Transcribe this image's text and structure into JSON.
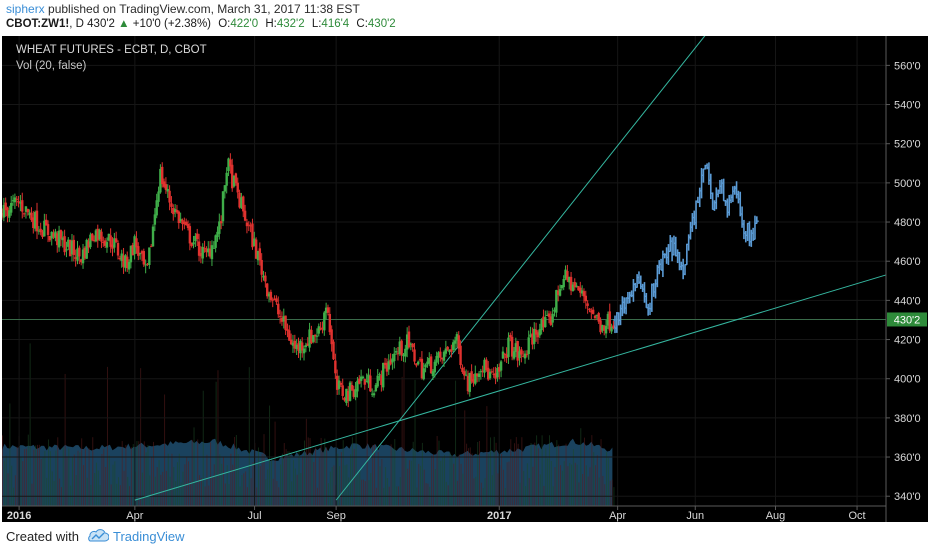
{
  "header": {
    "user": "sipherx",
    "published_text": " published on TradingView.com, March 31, 2017 11:38 EST",
    "symbol": "CBOT:ZW1!",
    "interval": ", D",
    "last": "430'2",
    "change_arrow": "▲",
    "change": "+10'0 (+2.38%)",
    "open_label": "O:",
    "open": "422'0",
    "high_label": "H:",
    "high": "432'2",
    "low_label": "L:",
    "low": "416'4",
    "close_label": "C:",
    "close": "430'2"
  },
  "footer": {
    "created_with": "Created with",
    "brand": "TradingView"
  },
  "colors": {
    "background": "#000000",
    "up": "#3fae49",
    "down": "#e0322f",
    "projection": "#5b9bd5",
    "trendline": "#35b7a0",
    "volume": "#1f4e6e",
    "last_tag": "#2e8b3a",
    "axis_text": "#d9d9d9"
  },
  "chart_data": {
    "type": "candlestick",
    "title": "WHEAT FUTURES - ECBT, D, CBOT",
    "indicator": "Vol (20, false)",
    "x_tick_labels": [
      "2016",
      "Apr",
      "Jul",
      "Sep",
      "2017",
      "Apr",
      "Jun",
      "Aug",
      "Oct"
    ],
    "x_tick_dates": [
      "2016-01-04",
      "2016-04-01",
      "2016-07-01",
      "2016-09-01",
      "2017-01-03",
      "2017-04-03",
      "2017-06-01",
      "2017-08-01",
      "2017-10-02"
    ],
    "x_range": [
      "2015-12-22",
      "2017-10-24"
    ],
    "y_ticks": [
      340,
      360,
      380,
      400,
      420,
      440,
      460,
      480,
      500,
      520,
      540,
      560
    ],
    "y_tick_labels": [
      "340'0",
      "360'0",
      "380'0",
      "400'0",
      "420'0",
      "440'0",
      "460'0",
      "480'0",
      "500'0",
      "520'0",
      "540'0",
      "560'0"
    ],
    "y_range": [
      335,
      575
    ],
    "last_price": 430.25,
    "last_price_label": "430'2",
    "price_path": [
      [
        "2015-12-22",
        485
      ],
      [
        "2016-01-04",
        490
      ],
      [
        "2016-01-20",
        478
      ],
      [
        "2016-02-05",
        470
      ],
      [
        "2016-02-20",
        462
      ],
      [
        "2016-03-01",
        475
      ],
      [
        "2016-03-15",
        470
      ],
      [
        "2016-03-25",
        458
      ],
      [
        "2016-04-01",
        470
      ],
      [
        "2016-04-10",
        452
      ],
      [
        "2016-04-20",
        505
      ],
      [
        "2016-04-28",
        490
      ],
      [
        "2016-05-10",
        475
      ],
      [
        "2016-05-25",
        462
      ],
      [
        "2016-06-05",
        478
      ],
      [
        "2016-06-10",
        510
      ],
      [
        "2016-06-20",
        490
      ],
      [
        "2016-06-30",
        470
      ],
      [
        "2016-07-10",
        448
      ],
      [
        "2016-07-20",
        432
      ],
      [
        "2016-08-01",
        415
      ],
      [
        "2016-08-10",
        420
      ],
      [
        "2016-08-20",
        425
      ],
      [
        "2016-08-25",
        440
      ],
      [
        "2016-09-01",
        395
      ],
      [
        "2016-09-10",
        392
      ],
      [
        "2016-09-20",
        400
      ],
      [
        "2016-10-01",
        396
      ],
      [
        "2016-10-12",
        410
      ],
      [
        "2016-10-25",
        418
      ],
      [
        "2016-11-05",
        405
      ],
      [
        "2016-11-20",
        410
      ],
      [
        "2016-12-01",
        420
      ],
      [
        "2016-12-10",
        398
      ],
      [
        "2016-12-20",
        408
      ],
      [
        "2016-12-31",
        398
      ],
      [
        "2017-01-10",
        418
      ],
      [
        "2017-01-20",
        410
      ],
      [
        "2017-02-01",
        426
      ],
      [
        "2017-02-10",
        428
      ],
      [
        "2017-02-20",
        452
      ],
      [
        "2017-02-28",
        448
      ],
      [
        "2017-03-10",
        440
      ],
      [
        "2017-03-20",
        428
      ],
      [
        "2017-03-31",
        430
      ]
    ],
    "volume_profile": [
      [
        "2015-12-22",
        0.35
      ],
      [
        "2016-03-01",
        0.34
      ],
      [
        "2016-06-01",
        0.38
      ],
      [
        "2016-07-15",
        0.28
      ],
      [
        "2016-09-15",
        0.36
      ],
      [
        "2016-12-01",
        0.3
      ],
      [
        "2017-01-15",
        0.33
      ],
      [
        "2017-03-01",
        0.38
      ],
      [
        "2017-03-31",
        0.33
      ]
    ],
    "projection_path": [
      [
        "2017-04-01",
        430
      ],
      [
        "2017-04-10",
        440
      ],
      [
        "2017-04-18",
        452
      ],
      [
        "2017-04-25",
        434
      ],
      [
        "2017-05-05",
        458
      ],
      [
        "2017-05-15",
        468
      ],
      [
        "2017-05-22",
        455
      ],
      [
        "2017-05-28",
        475
      ],
      [
        "2017-06-05",
        495
      ],
      [
        "2017-06-08",
        512
      ],
      [
        "2017-06-14",
        490
      ],
      [
        "2017-06-20",
        500
      ],
      [
        "2017-06-26",
        485
      ],
      [
        "2017-07-01",
        498
      ],
      [
        "2017-07-08",
        478
      ],
      [
        "2017-07-14",
        472
      ],
      [
        "2017-07-18",
        478
      ]
    ],
    "trendlines": [
      {
        "from": [
          "2016-04-01",
          338
        ],
        "to": [
          "2017-10-24",
          453
        ]
      },
      {
        "from": [
          "2016-09-01",
          338
        ],
        "to": [
          "2017-06-20",
          585
        ]
      }
    ],
    "current_price_line": 430.25
  }
}
